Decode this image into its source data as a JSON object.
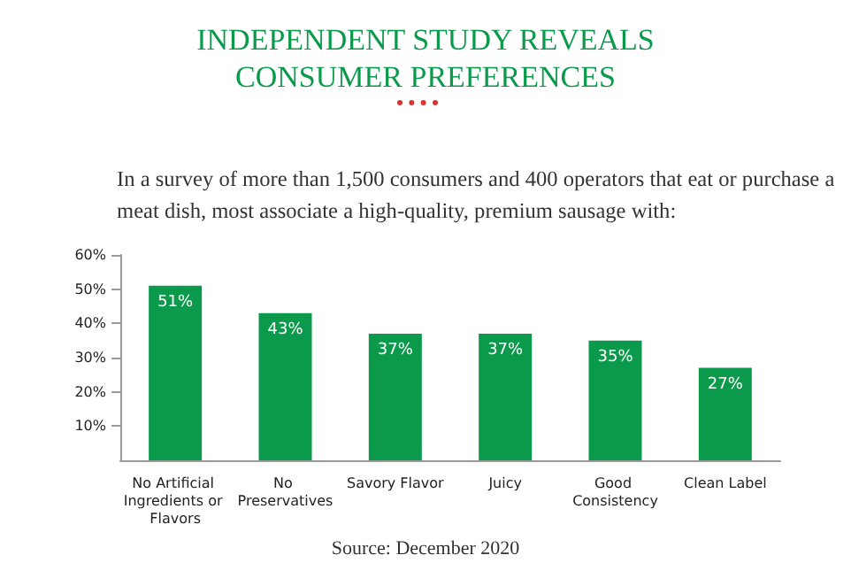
{
  "chart_data": {
    "type": "bar",
    "title": "INDEPENDENT STUDY REVEALS\nCONSUMER PREFERENCES",
    "subtitle": "In a survey of more than 1,500 consumers and 400 operators that eat or purchase a meat dish, most associate a high-quality, premium sausage with:",
    "categories": [
      "No Artificial Ingredients or Flavors",
      "No Preservatives",
      "Savory Flavor",
      "Juicy",
      "Good Consistency",
      "Clean Label"
    ],
    "values": [
      51,
      43,
      37,
      37,
      35,
      27
    ],
    "color": "#0b9a4b",
    "value_labels": [
      "51%",
      "43%",
      "37%",
      "37%",
      "35%",
      "27%"
    ],
    "ylim": [
      0,
      60
    ],
    "yticks": [
      {
        "value": 10,
        "label": "10%"
      },
      {
        "value": 20,
        "label": "20%"
      },
      {
        "value": 30,
        "label": "30%"
      },
      {
        "value": 40,
        "label": "40%"
      },
      {
        "value": 50,
        "label": "50%"
      },
      {
        "value": 60,
        "label": "60%"
      }
    ],
    "grid": false,
    "annotations": [
      "Source: December 2020"
    ]
  }
}
